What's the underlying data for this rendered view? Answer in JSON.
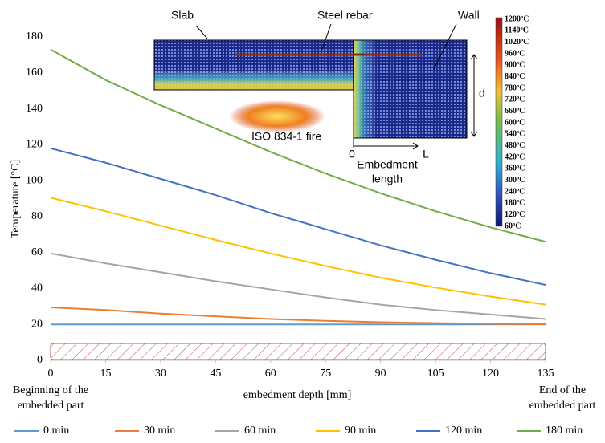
{
  "chart_data": {
    "type": "line",
    "x_label": "embedment depth [mm]",
    "y_label": "Temperature [°C]",
    "x": [
      0,
      15,
      30,
      45,
      60,
      75,
      90,
      105,
      120,
      135
    ],
    "xlim": [
      0,
      135
    ],
    "xticks": [
      0,
      15,
      30,
      45,
      60,
      75,
      90,
      105,
      120,
      135
    ],
    "ylim": [
      0,
      180
    ],
    "yticks": [
      0,
      20,
      40,
      60,
      80,
      100,
      120,
      140,
      160,
      180
    ],
    "grid": false,
    "legend": "bottom",
    "series": [
      {
        "name": "0 min",
        "color": "#5b9bd5",
        "values": [
          20,
          20,
          20,
          20,
          20,
          20,
          20,
          20,
          20,
          20
        ]
      },
      {
        "name": "30 min",
        "color": "#ed7d31",
        "values": [
          29.5,
          28,
          26,
          24.5,
          23,
          22,
          21.2,
          20.7,
          20.3,
          20.1
        ]
      },
      {
        "name": "60 min",
        "color": "#a5a5a5",
        "values": [
          59.5,
          54,
          49,
          44,
          39.5,
          35,
          31,
          28,
          25.5,
          23
        ]
      },
      {
        "name": "90 min",
        "color": "#ffc000",
        "values": [
          90.5,
          83,
          75,
          67,
          59.5,
          52.5,
          46,
          40.5,
          35.5,
          31
        ]
      },
      {
        "name": "120 min",
        "color": "#4472c4",
        "values": [
          118,
          110,
          101,
          92,
          82,
          73,
          64,
          56,
          48.5,
          42
        ]
      },
      {
        "name": "180 min",
        "color": "#70ad47",
        "values": [
          173,
          156,
          142,
          129,
          116,
          104,
          93,
          83,
          74,
          66
        ]
      }
    ],
    "annotations": {
      "start": [
        "Beginning of the",
        "embedded part"
      ],
      "end": [
        "End of the",
        "embedded part"
      ]
    },
    "inset": {
      "slab": "Slab",
      "rebar": "Steel rebar",
      "wall": "Wall",
      "d": "d",
      "fire": "ISO 834-1 fire",
      "origin": "0",
      "l": "L",
      "length": [
        "Embedment",
        "length"
      ]
    },
    "colorbar": [
      "1200ºC",
      "1140ºC",
      "1020ºC",
      "960ºC",
      "900ºC",
      "840ºC",
      "780ºC",
      "720ºC",
      "660ºC",
      "600ºC",
      "540ºC",
      "480ºC",
      "420ºC",
      "360ºC",
      "300ºC",
      "240ºC",
      "180ºC",
      "120ºC",
      "60ºC"
    ]
  }
}
